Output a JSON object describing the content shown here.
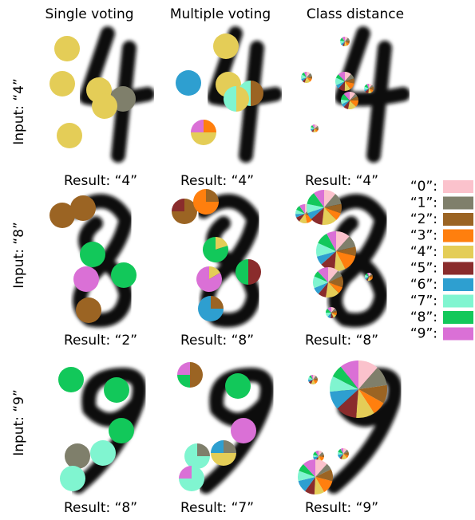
{
  "columns": [
    "Single voting",
    "Multiple voting",
    "Class distance"
  ],
  "rows": [
    {
      "input": "Input: “4”",
      "results": [
        "Result: “4”",
        "Result: “4”",
        "Result: “4”"
      ]
    },
    {
      "input": "Input: “8”",
      "results": [
        "Result: “2”",
        "Result: “8”",
        "Result: “8”"
      ]
    },
    {
      "input": "Input: “9”",
      "results": [
        "Result: “8”",
        "Result: “7”",
        "Result: “9”"
      ]
    }
  ],
  "legend": [
    {
      "label": "“0”:",
      "color": "#fbc2cc"
    },
    {
      "label": "“1”:",
      "color": "#7f7f6b"
    },
    {
      "label": "“2”:",
      "color": "#9b6423"
    },
    {
      "label": "“3”:",
      "color": "#ff7f0e"
    },
    {
      "label": "“4”:",
      "color": "#e4cd57"
    },
    {
      "label": "“5”:",
      "color": "#8a2c2c"
    },
    {
      "label": "“6”:",
      "color": "#2e9fd0"
    },
    {
      "label": "“7”:",
      "color": "#80f5d0"
    },
    {
      "label": "“8”:",
      "color": "#12c85a"
    },
    {
      "label": "“9”:",
      "color": "#da70d6"
    }
  ]
}
